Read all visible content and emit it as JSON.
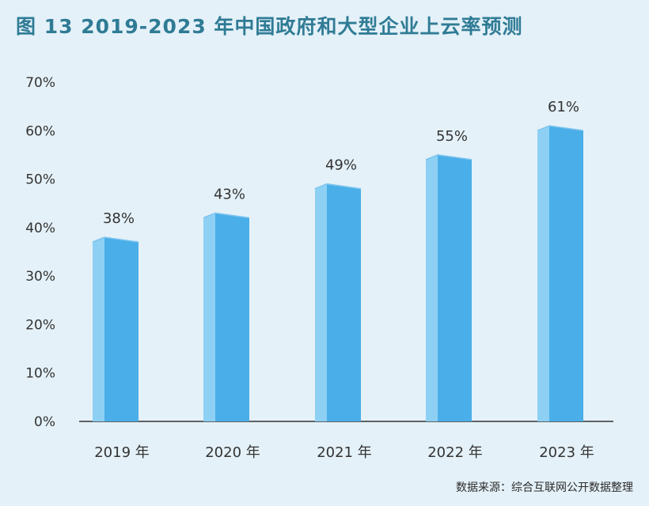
{
  "title": "图 13  2019-2023 年中国政府和大型企业上云率预测",
  "source": "数据来源：综合互联网公开数据整理",
  "chart_data": {
    "type": "bar",
    "categories": [
      "2019 年",
      "2020 年",
      "2021 年",
      "2022 年",
      "2023 年"
    ],
    "values": [
      38,
      43,
      49,
      55,
      61
    ],
    "data_labels": [
      "38%",
      "43%",
      "49%",
      "55%",
      "61%"
    ],
    "y_ticks": [
      "0%",
      "10%",
      "20%",
      "30%",
      "40%",
      "50%",
      "60%",
      "70%"
    ],
    "ylim": [
      0,
      70
    ],
    "grid": false,
    "colors": {
      "bar_front": "#4aaee8",
      "bar_side": "#8dd0f4",
      "bar_top": "#7cc4ef",
      "title": "#2f7b95",
      "background": "#e4f1f8"
    }
  }
}
